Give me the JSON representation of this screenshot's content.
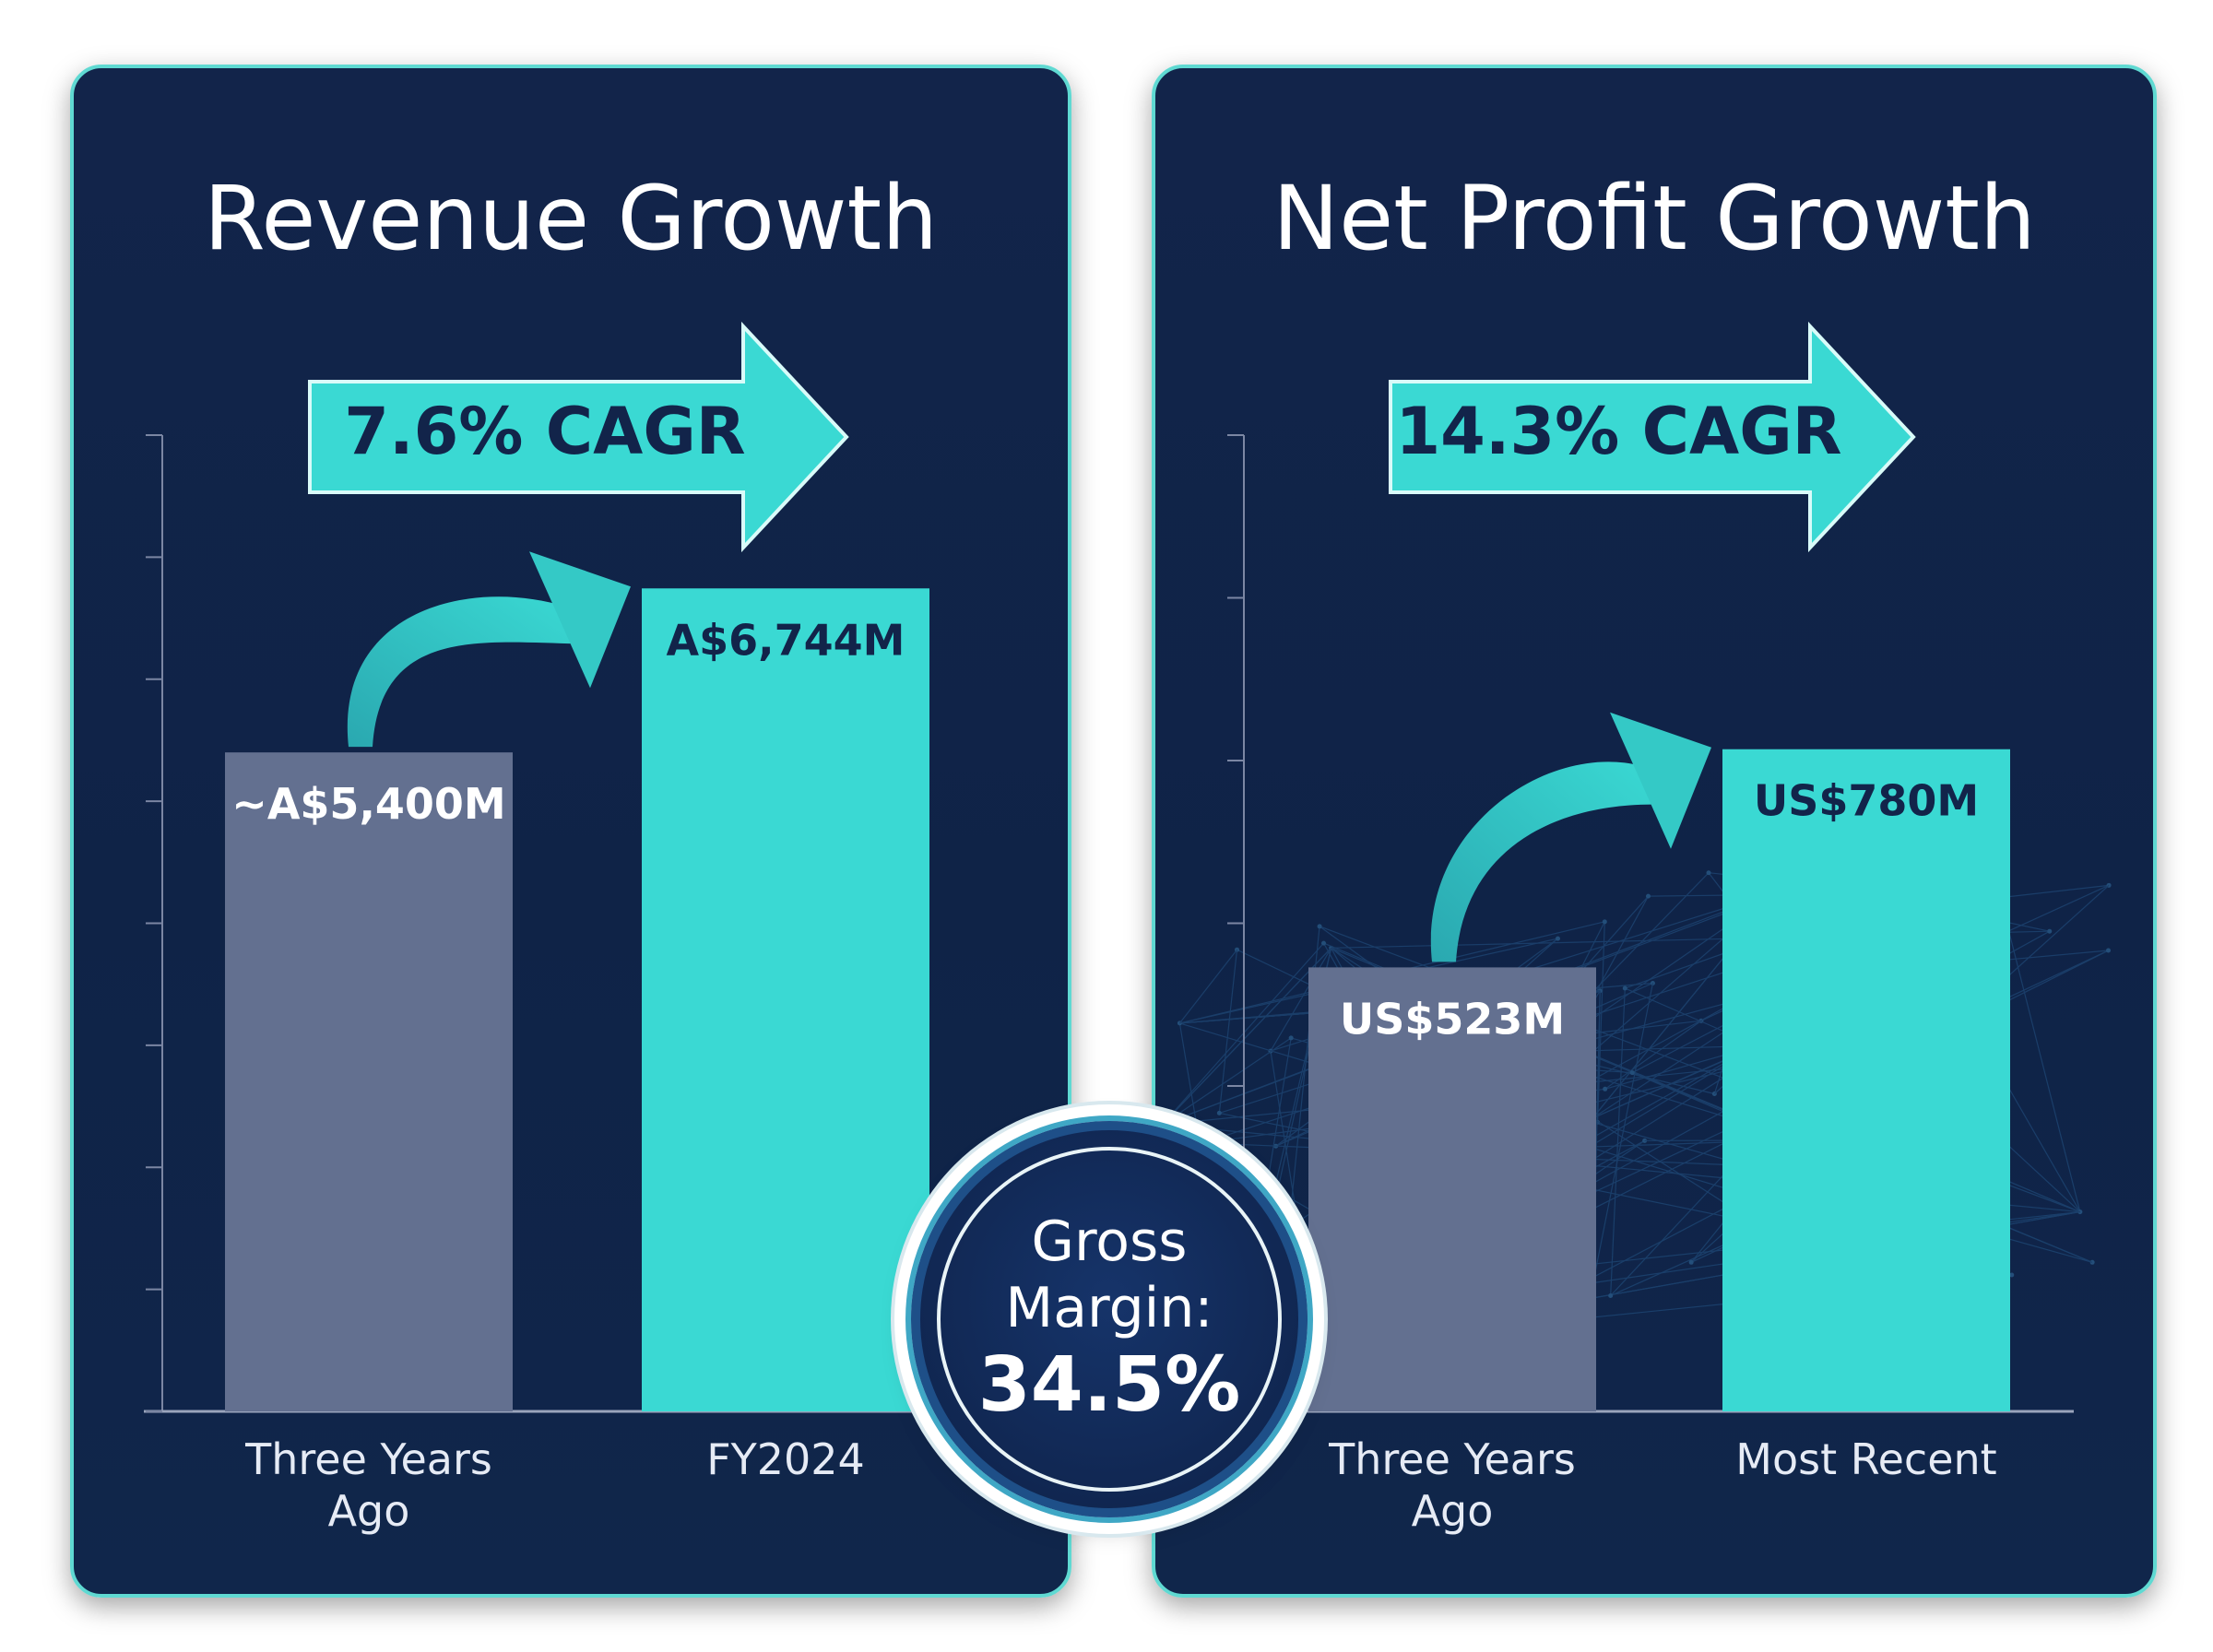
{
  "chart_data": [
    {
      "type": "bar",
      "title": "Revenue Growth",
      "categories": [
        "Three Years Ago",
        "FY2024"
      ],
      "values": [
        5400,
        6744
      ],
      "value_labels": [
        "~A$5,400M",
        "A$6,744M"
      ],
      "annotation": "7.6% CAGR",
      "ylim": [
        0,
        8000
      ],
      "grid": false,
      "colors": [
        "#637090",
        "#3ad9d3"
      ]
    },
    {
      "type": "bar",
      "title": "Net Profit Growth",
      "categories": [
        "Three Years Ago",
        "Most Recent"
      ],
      "values": [
        523,
        780
      ],
      "value_labels": [
        "US$523M",
        "US$780M"
      ],
      "annotation": "14.3% CAGR",
      "ylim": [
        0,
        1150
      ],
      "grid": false,
      "colors": [
        "#637090",
        "#3ad9d3"
      ]
    }
  ],
  "badge": {
    "label_line1": "Gross",
    "label_line2": "Margin:",
    "value": "34.5%"
  },
  "colors": {
    "panel": "#12244a",
    "accent": "#3ad9d3",
    "muted_bar": "#637090",
    "arrow_text": "#12244a"
  }
}
